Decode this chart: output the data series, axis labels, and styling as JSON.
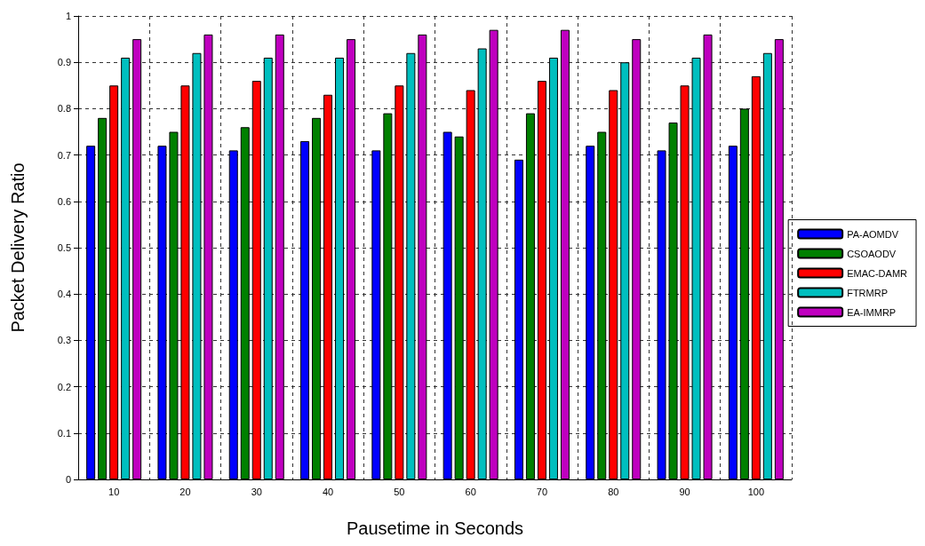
{
  "chart_data": {
    "type": "bar",
    "xlabel": "Pausetime in Seconds",
    "ylabel": "Packet Delivery Ratio",
    "categories": [
      "10",
      "20",
      "30",
      "40",
      "50",
      "60",
      "70",
      "80",
      "90",
      "100"
    ],
    "series": [
      {
        "name": "PA-AOMDV",
        "color": "#0000ff",
        "values": [
          0.72,
          0.72,
          0.71,
          0.73,
          0.71,
          0.75,
          0.69,
          0.72,
          0.71,
          0.72
        ]
      },
      {
        "name": "CSOAODV",
        "color": "#008000",
        "values": [
          0.78,
          0.75,
          0.76,
          0.78,
          0.79,
          0.74,
          0.79,
          0.75,
          0.77,
          0.8
        ]
      },
      {
        "name": "EMAC-DAMR",
        "color": "#ff0000",
        "values": [
          0.85,
          0.85,
          0.86,
          0.83,
          0.85,
          0.84,
          0.86,
          0.84,
          0.85,
          0.87
        ]
      },
      {
        "name": "FTRMRP",
        "color": "#00bfbf",
        "values": [
          0.91,
          0.92,
          0.91,
          0.91,
          0.92,
          0.93,
          0.91,
          0.9,
          0.91,
          0.92
        ]
      },
      {
        "name": "EA-IMMRP",
        "color": "#bf00bf",
        "values": [
          0.95,
          0.96,
          0.96,
          0.95,
          0.96,
          0.97,
          0.97,
          0.95,
          0.96,
          0.95
        ]
      }
    ],
    "ylim": [
      0,
      1
    ],
    "yticks": [
      0,
      0.1,
      0.2,
      0.3,
      0.4,
      0.5,
      0.6,
      0.7,
      0.8,
      0.9,
      1
    ],
    "grid": true,
    "legend": "right"
  }
}
